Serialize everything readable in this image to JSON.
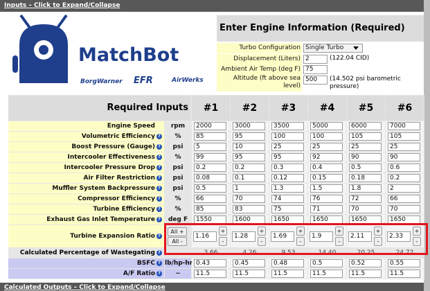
{
  "top_bar": "Inputs – Click to Expand/Collapse",
  "logo": {
    "name": "MatchBot",
    "brands": [
      "BorgWarner",
      "EFR",
      "AirWerks"
    ]
  },
  "engine_info": {
    "title": "Enter Engine Information (Required)",
    "fields": [
      {
        "label": "Turbo Configuration",
        "value": "Single Turbo"
      },
      {
        "label": "Displacement (Liters)",
        "value": "2",
        "note": "(122.04 CID)"
      },
      {
        "label": "Ambient Air Temp (deg F)",
        "value": "75"
      },
      {
        "label": "Altitude (ft above sea level)",
        "value": "500",
        "note": "(14.502 psi barometric pressure)"
      }
    ]
  },
  "table": {
    "title": "Required Inputs",
    "help_icon": "?",
    "columns": [
      "#1",
      "#2",
      "#3",
      "#4",
      "#5",
      "#6"
    ],
    "rows": [
      {
        "label": "Engine Speed",
        "unit": "rpm",
        "values": [
          "2000",
          "3000",
          "3500",
          "5000",
          "6000",
          "7000"
        ]
      },
      {
        "label": "Volumetric Efficiency",
        "unit": "%",
        "values": [
          "85",
          "95",
          "100",
          "100",
          "105",
          "105"
        ]
      },
      {
        "label": "Boost Pressure (Gauge)",
        "unit": "psi",
        "values": [
          "5",
          "10",
          "25",
          "25",
          "25",
          "25"
        ]
      },
      {
        "label": "Intercooler Effectiveness",
        "unit": "%",
        "values": [
          "99",
          "95",
          "95",
          "92",
          "90",
          "90"
        ]
      },
      {
        "label": "Intercooler Pressure Drop",
        "unit": "psi",
        "values": [
          "0.2",
          "0.2",
          "0.3",
          "0.4",
          "0.5",
          "0.6"
        ]
      },
      {
        "label": "Air Filter Restriction",
        "unit": "psi",
        "values": [
          "0.08",
          "0.1",
          "0.12",
          "0.15",
          "0.18",
          "0.2"
        ]
      },
      {
        "label": "Muffler System Backpressure",
        "unit": "psi",
        "values": [
          "0.5",
          "1",
          "1.3",
          "1.5",
          "1.8",
          "2"
        ]
      },
      {
        "label": "Compressor Efficiency",
        "unit": "%",
        "values": [
          "66",
          "70",
          "74",
          "76",
          "72",
          "66"
        ]
      },
      {
        "label": "Turbine Efficiency",
        "unit": "%",
        "values": [
          "85",
          "83",
          "75",
          "71",
          "70",
          "70"
        ]
      },
      {
        "label": "Exhaust Gas Inlet Temperature",
        "unit": "deg F",
        "values": [
          "1550",
          "1600",
          "1650",
          "1650",
          "1650",
          "1650"
        ]
      }
    ],
    "expansion_row": {
      "label": "Turbine Expansion Ratio",
      "all_plus": "All +",
      "all_minus": "All -",
      "plus": "+",
      "minus": "-",
      "values": [
        "1.16",
        "1.28",
        "1.69",
        "1.9",
        "2.11",
        "2.33"
      ]
    },
    "wastegate_row": {
      "label": "Calculated Percentage of Wastegating",
      "values": [
        "3.66",
        "4.26",
        "9.53",
        "14.40",
        "20.25",
        "24.72"
      ]
    },
    "output_rows": [
      {
        "label": "BSFC",
        "unit": "lb/hp-hr",
        "values": [
          "0.43",
          "0.45",
          "0.48",
          "0.5",
          "0.52",
          "0.55"
        ]
      },
      {
        "label": "A/F Ratio",
        "unit": "~",
        "values": [
          "11.5",
          "11.5",
          "11.5",
          "11.5",
          "11.5",
          "11.5"
        ]
      }
    ]
  },
  "bottom_bar": "Calculated Outputs – Click to Expand/Collapse"
}
